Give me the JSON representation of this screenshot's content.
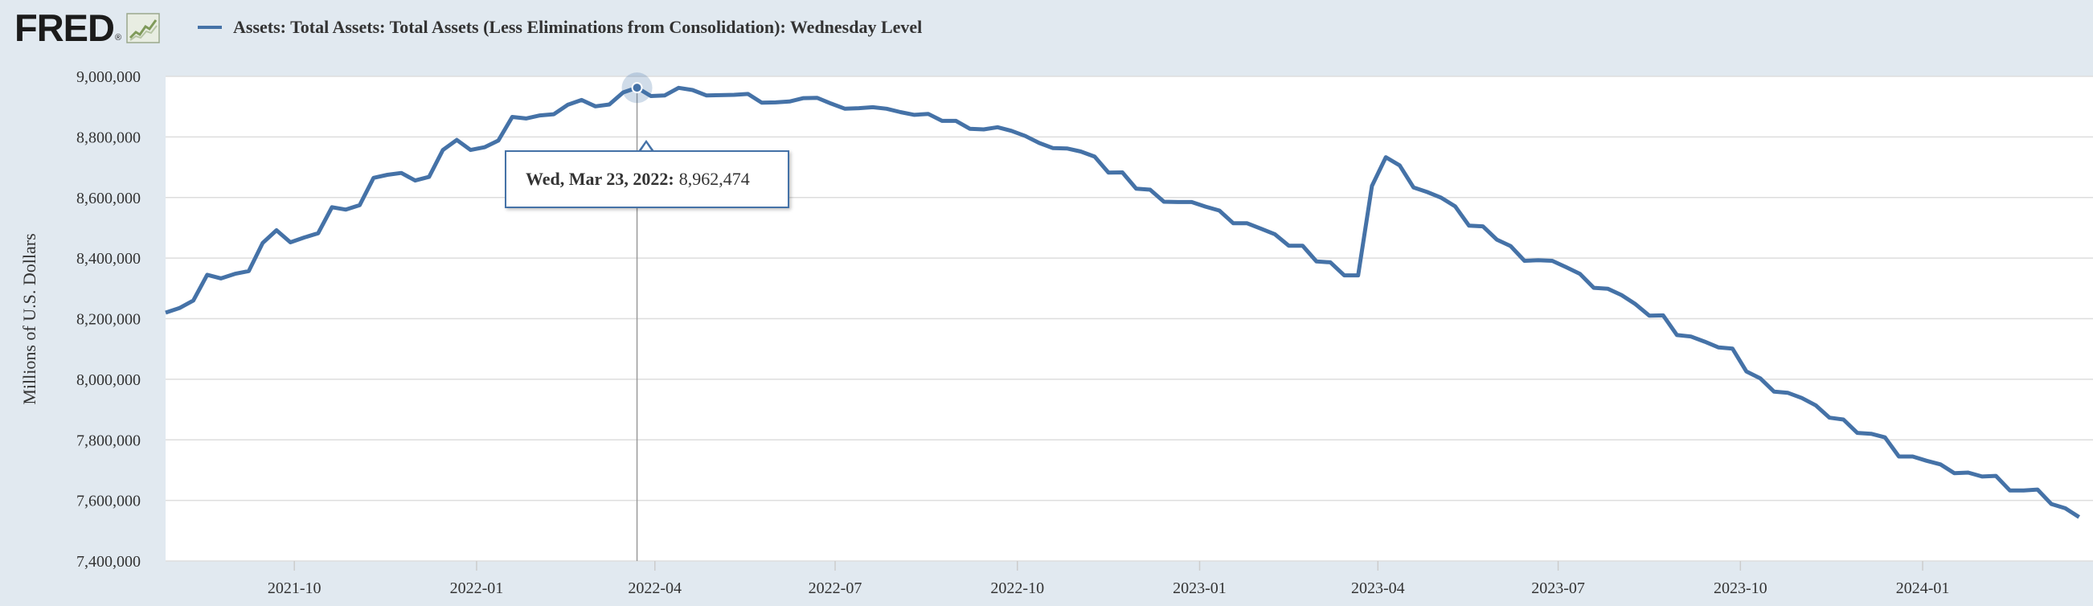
{
  "header": {
    "logo_text": "FRED",
    "logo_mark": "®",
    "series_title": "Assets: Total Assets: Total Assets (Less Eliminations from Consolidation): Wednesday Level"
  },
  "tooltip": {
    "date_label": "Wed, Mar 23, 2022:",
    "value_label": "8,962,474"
  },
  "colors": {
    "series": "#4572a7",
    "background": "#e1e9f0",
    "plot": "#ffffff",
    "grid": "#dddddd"
  },
  "chart_data": {
    "type": "line",
    "ylabel": "Millions of U.S. Dollars",
    "ylim": [
      7400000,
      9000000
    ],
    "yticks": [
      {
        "value": 7400000,
        "label": "7,400,000"
      },
      {
        "value": 7600000,
        "label": "7,600,000"
      },
      {
        "value": 7800000,
        "label": "7,800,000"
      },
      {
        "value": 8000000,
        "label": "8,000,000"
      },
      {
        "value": 8200000,
        "label": "8,200,000"
      },
      {
        "value": 8400000,
        "label": "8,400,000"
      },
      {
        "value": 8600000,
        "label": "8,600,000"
      },
      {
        "value": 8800000,
        "label": "8,800,000"
      },
      {
        "value": 9000000,
        "label": "9,000,000"
      }
    ],
    "xlim": [
      "2021-07-28",
      "2024-03-27"
    ],
    "xticks": [
      {
        "date": "2021-10-01",
        "label": "2021-10"
      },
      {
        "date": "2022-01-01",
        "label": "2022-01"
      },
      {
        "date": "2022-04-01",
        "label": "2022-04"
      },
      {
        "date": "2022-07-01",
        "label": "2022-07"
      },
      {
        "date": "2022-10-01",
        "label": "2022-10"
      },
      {
        "date": "2023-01-01",
        "label": "2023-01"
      },
      {
        "date": "2023-04-01",
        "label": "2023-04"
      },
      {
        "date": "2023-07-01",
        "label": "2023-07"
      },
      {
        "date": "2023-10-01",
        "label": "2023-10"
      },
      {
        "date": "2024-01-01",
        "label": "2024-01"
      }
    ],
    "grid": true,
    "highlight": {
      "date": "2022-03-23",
      "value": 8962474
    },
    "series": [
      {
        "start": "2021-07-28",
        "interval_days": 7,
        "values": [
          8220000,
          8235000,
          8260000,
          8345000,
          8333000,
          8348000,
          8357000,
          8450000,
          8492000,
          8452000,
          8468000,
          8482000,
          8568000,
          8560000,
          8575000,
          8665000,
          8675000,
          8681000,
          8656000,
          8668000,
          8757000,
          8790000,
          8757000,
          8766000,
          8788000,
          8866000,
          8861000,
          8871000,
          8875000,
          8906000,
          8922000,
          8901000,
          8907000,
          8947000,
          8962474,
          8935000,
          8937000,
          8962000,
          8955000,
          8937000,
          8938000,
          8939000,
          8942000,
          8913000,
          8914000,
          8917000,
          8928000,
          8929000,
          8910000,
          8893000,
          8895000,
          8898000,
          8893000,
          8882000,
          8873000,
          8876000,
          8853000,
          8853000,
          8827000,
          8825000,
          8832000,
          8820000,
          8803000,
          8780000,
          8763000,
          8762000,
          8752000,
          8735000,
          8682000,
          8683000,
          8629000,
          8626000,
          8586000,
          8585000,
          8585000,
          8570000,
          8557000,
          8515000,
          8515000,
          8497000,
          8479000,
          8441000,
          8441000,
          8389000,
          8386000,
          8343000,
          8343000,
          8638000,
          8733000,
          8706000,
          8633000,
          8618000,
          8599000,
          8571000,
          8507000,
          8505000,
          8461000,
          8440000,
          8391000,
          8393000,
          8391000,
          8370000,
          8348000,
          8302000,
          8299000,
          8278000,
          8248000,
          8210000,
          8211000,
          8146000,
          8141000,
          8124000,
          8105000,
          8101000,
          8026000,
          8003000,
          7959000,
          7955000,
          7938000,
          7914000,
          7873000,
          7867000,
          7823000,
          7820000,
          7808000,
          7745000,
          7745000,
          7731000,
          7719000,
          7690000,
          7692000,
          7679000,
          7681000,
          7633000,
          7633000,
          7636000,
          7588000,
          7574000,
          7545000
        ]
      }
    ]
  }
}
